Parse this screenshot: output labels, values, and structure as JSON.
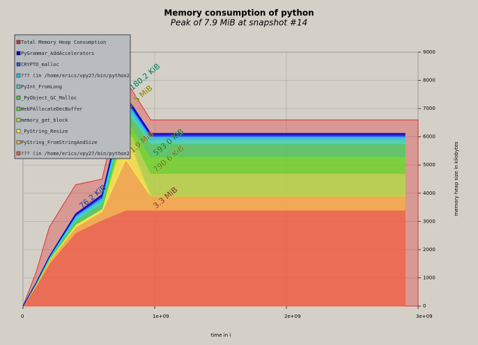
{
  "chart_data": {
    "type": "stacked-area",
    "title": "Memory consumption of python",
    "subtitle": "Peak of 7.9 MiB at snapshot #14",
    "x_label": "time in i",
    "y_label": "memory heap size in kilobytes",
    "x": [
      0,
      100000000,
      200000000,
      400000000,
      600000000,
      780000000,
      970000000,
      1500000000,
      2900000000,
      3000000000
    ],
    "xlim": [
      0,
      3000000000
    ],
    "xticks": [
      0,
      {
        "value": 1000000000,
        "label": "1e+09"
      },
      {
        "value": 2000000000,
        "label": "2e+09"
      },
      {
        "value": 3000000000,
        "label": "3e+09"
      }
    ],
    "ylim": [
      0,
      9000
    ],
    "yticks": [
      0,
      1000,
      2000,
      3000,
      4000,
      5000,
      6000,
      7000,
      8000,
      9000
    ],
    "grid": true,
    "total": {
      "name": "Total Memory Heap Consumption",
      "color": "#e03030",
      "values": [
        0,
        1200,
        2800,
        4300,
        4500,
        8000,
        6600,
        6600,
        6600,
        6600
      ]
    },
    "series": [
      {
        "name": "PyGrammar_AddAccelerators",
        "color": "#0000c8",
        "values": [
          0,
          5,
          10,
          40,
          60,
          80,
          60,
          60,
          60,
          null
        ]
      },
      {
        "name": "CRYPTO_malloc",
        "color": "#2060ff",
        "values": [
          0,
          5,
          10,
          40,
          60,
          80,
          60,
          60,
          60,
          null
        ]
      },
      {
        "name": "??? (in /home/erics/vpy27/bin/python2",
        "color": "#20c8f0",
        "values": [
          0,
          10,
          20,
          80,
          100,
          200,
          100,
          100,
          100,
          null
        ]
      },
      {
        "name": "PyInt_FromLong",
        "color": "#30e0c0",
        "values": [
          0,
          10,
          20,
          60,
          80,
          100,
          150,
          150,
          150,
          null
        ]
      },
      {
        "name": "_PyObject_GC_Malloc",
        "color": "#40d060",
        "values": [
          0,
          30,
          60,
          150,
          200,
          300,
          450,
          450,
          450,
          null
        ]
      },
      {
        "name": "WebPAllocateDecBuffer",
        "color": "#60e020",
        "values": [
          0,
          0,
          0,
          0,
          0,
          200,
          600,
          600,
          600,
          null
        ]
      },
      {
        "name": "memory_get_block",
        "color": "#b0e040",
        "values": [
          0,
          0,
          0,
          0,
          0,
          300,
          800,
          800,
          800,
          null
        ]
      },
      {
        "name": "_PyString_Resize",
        "color": "#f8f040",
        "values": [
          0,
          20,
          40,
          100,
          100,
          1000,
          0,
          0,
          0,
          null
        ]
      },
      {
        "name": "PyString_FromStringAndSize",
        "color": "#f8b040",
        "values": [
          0,
          50,
          100,
          200,
          300,
          1800,
          500,
          500,
          500,
          null
        ]
      },
      {
        "name": "??? (in /home/erics/vpy27/bin/python2",
        "color": "#f06040",
        "values": [
          0,
          700,
          1500,
          2600,
          3050,
          3400,
          3400,
          3400,
          3400,
          null
        ]
      }
    ],
    "annotations": [
      "180.2 KiB",
      "1.5 MiB",
      "1.9 MiB",
      "593.0 KiB",
      "790.6 KiB",
      "3.3 MiB",
      "76.2 KiB"
    ]
  }
}
